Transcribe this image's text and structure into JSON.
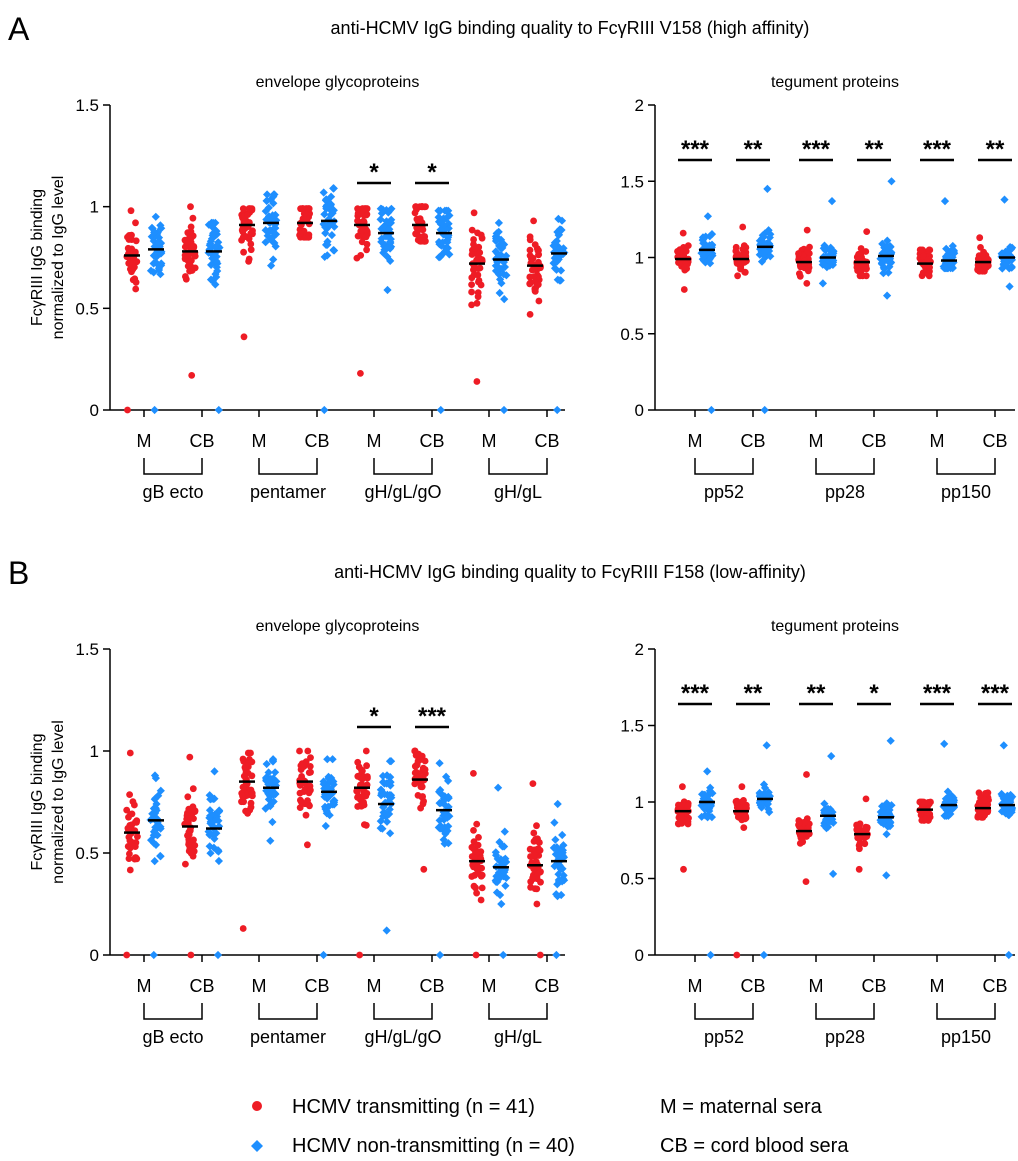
{
  "panels": [
    {
      "letter": "A",
      "title": "anti-HCMV IgG binding quality to FcγRIII V158 (high affinity)"
    },
    {
      "letter": "B",
      "title": "anti-HCMV IgG binding quality to FcγRIII F158 (low-affinity)"
    }
  ],
  "ylabel_line1": "FcγRIII IgG binding",
  "ylabel_line2": "normalized to IgG level",
  "group_titles": {
    "envelope": "envelope glycoproteins",
    "tegument": "tegument proteins"
  },
  "legend": {
    "transmitting": "HCMV transmitting (n = 41)",
    "non_transmitting": "HCMV non-transmitting (n = 40)",
    "m_def": "M = maternal sera",
    "cb_def": "CB = cord blood sera"
  },
  "colors": {
    "transmitting": "#ee1c25",
    "non_transmitting": "#1e8fff",
    "axis": "#000000"
  },
  "markers": {
    "transmitting": "circle",
    "non_transmitting": "diamond"
  },
  "chart_data": [
    {
      "type": "scatter",
      "panel": "A",
      "subplot": "envelope glycoproteins",
      "ylim": [
        0,
        1.5
      ],
      "yticks": [
        "0",
        "0.5",
        "1",
        "1.5"
      ],
      "antigens": [
        "gB ecto",
        "pentamer",
        "gH/gL/gO",
        "gH/gL"
      ],
      "sample_labels": [
        "M",
        "CB"
      ],
      "medians": {
        "transmitting": {
          "M": [
            0.76,
            0.91,
            0.91,
            0.72
          ],
          "CB": [
            0.78,
            0.92,
            0.91,
            0.71
          ]
        },
        "non_transmitting": {
          "M": [
            0.79,
            0.92,
            0.87,
            0.74
          ],
          "CB": [
            0.78,
            0.93,
            0.87,
            0.77
          ]
        }
      },
      "ranges": {
        "transmitting": {
          "M": [
            [
              0.0,
              0.98
            ],
            [
              0.36,
              0.99
            ],
            [
              0.18,
              0.99
            ],
            [
              0.14,
              0.97
            ]
          ],
          "CB": [
            [
              0.17,
              1.0
            ],
            [
              0.85,
              0.99
            ],
            [
              0.83,
              1.0
            ],
            [
              0.47,
              0.93
            ]
          ]
        },
        "non_transmitting": {
          "M": [
            [
              0.0,
              0.95
            ],
            [
              0.71,
              1.06
            ],
            [
              0.59,
              0.99
            ],
            [
              0.0,
              0.92
            ]
          ],
          "CB": [
            [
              0.0,
              0.92
            ],
            [
              0.0,
              1.09
            ],
            [
              0.0,
              0.98
            ],
            [
              0.0,
              0.94
            ]
          ]
        }
      },
      "significance": [
        {
          "antigen": "gH/gL/gO",
          "sample": "M",
          "label": "*"
        },
        {
          "antigen": "gH/gL/gO",
          "sample": "CB",
          "label": "*"
        }
      ]
    },
    {
      "type": "scatter",
      "panel": "A",
      "subplot": "tegument proteins",
      "ylim": [
        0,
        2
      ],
      "yticks": [
        "0",
        "0.5",
        "1",
        "1.5",
        "2"
      ],
      "antigens": [
        "pp52",
        "pp28",
        "pp150"
      ],
      "sample_labels": [
        "M",
        "CB"
      ],
      "medians": {
        "transmitting": {
          "M": [
            0.99,
            0.97,
            0.96
          ],
          "CB": [
            0.99,
            0.97,
            0.97
          ]
        },
        "non_transmitting": {
          "M": [
            1.05,
            1.0,
            0.98
          ],
          "CB": [
            1.07,
            1.01,
            1.0
          ]
        }
      },
      "ranges": {
        "transmitting": {
          "M": [
            [
              0.79,
              1.16
            ],
            [
              0.83,
              1.18
            ],
            [
              0.88,
              1.05
            ]
          ],
          "CB": [
            [
              0.88,
              1.2
            ],
            [
              0.88,
              1.17
            ],
            [
              0.91,
              1.13
            ]
          ]
        },
        "non_transmitting": {
          "M": [
            [
              0.0,
              1.27
            ],
            [
              0.83,
              1.37
            ],
            [
              0.93,
              1.37
            ]
          ],
          "CB": [
            [
              0.0,
              1.45
            ],
            [
              0.75,
              1.5
            ],
            [
              0.81,
              1.38
            ]
          ]
        }
      },
      "significance": [
        {
          "antigen": "pp52",
          "sample": "M",
          "label": "***"
        },
        {
          "antigen": "pp52",
          "sample": "CB",
          "label": "**"
        },
        {
          "antigen": "pp28",
          "sample": "M",
          "label": "***"
        },
        {
          "antigen": "pp28",
          "sample": "CB",
          "label": "**"
        },
        {
          "antigen": "pp150",
          "sample": "M",
          "label": "***"
        },
        {
          "antigen": "pp150",
          "sample": "CB",
          "label": "**"
        }
      ]
    },
    {
      "type": "scatter",
      "panel": "B",
      "subplot": "envelope glycoproteins",
      "ylim": [
        0,
        1.5
      ],
      "yticks": [
        "0",
        "0.5",
        "1",
        "1.5"
      ],
      "antigens": [
        "gB ecto",
        "pentamer",
        "gH/gL/gO",
        "gH/gL"
      ],
      "sample_labels": [
        "M",
        "CB"
      ],
      "medians": {
        "transmitting": {
          "M": [
            0.6,
            0.85,
            0.82,
            0.46
          ],
          "CB": [
            0.63,
            0.85,
            0.86,
            0.44
          ]
        },
        "non_transmitting": {
          "M": [
            0.66,
            0.82,
            0.74,
            0.43
          ],
          "CB": [
            0.62,
            0.8,
            0.71,
            0.46
          ]
        }
      },
      "ranges": {
        "transmitting": {
          "M": [
            [
              0.0,
              0.99
            ],
            [
              0.13,
              0.99
            ],
            [
              0.0,
              1.0
            ],
            [
              0.0,
              0.89
            ]
          ],
          "CB": [
            [
              0.0,
              0.97
            ],
            [
              0.54,
              1.0
            ],
            [
              0.42,
              1.0
            ],
            [
              0.0,
              0.84
            ]
          ]
        },
        "non_transmitting": {
          "M": [
            [
              0.0,
              0.88
            ],
            [
              0.56,
              0.96
            ],
            [
              0.12,
              0.95
            ],
            [
              0.0,
              0.82
            ]
          ],
          "CB": [
            [
              0.0,
              0.9
            ],
            [
              0.0,
              0.96
            ],
            [
              0.0,
              0.94
            ],
            [
              0.0,
              0.74
            ]
          ]
        }
      },
      "significance": [
        {
          "antigen": "gH/gL/gO",
          "sample": "M",
          "label": "*"
        },
        {
          "antigen": "gH/gL/gO",
          "sample": "CB",
          "label": "***"
        }
      ]
    },
    {
      "type": "scatter",
      "panel": "B",
      "subplot": "tegument proteins",
      "ylim": [
        0,
        2
      ],
      "yticks": [
        "0",
        "0.5",
        "1",
        "1.5",
        "2"
      ],
      "antigens": [
        "pp52",
        "pp28",
        "pp150"
      ],
      "sample_labels": [
        "M",
        "CB"
      ],
      "medians": {
        "transmitting": {
          "M": [
            0.94,
            0.81,
            0.95
          ],
          "CB": [
            0.94,
            0.79,
            0.96
          ]
        },
        "non_transmitting": {
          "M": [
            1.0,
            0.91,
            0.98
          ],
          "CB": [
            1.02,
            0.9,
            0.98
          ]
        }
      },
      "ranges": {
        "transmitting": {
          "M": [
            [
              0.56,
              1.1
            ],
            [
              0.48,
              1.18
            ],
            [
              0.88,
              1.0
            ]
          ],
          "CB": [
            [
              0.0,
              1.1
            ],
            [
              0.56,
              1.02
            ],
            [
              0.9,
              1.06
            ]
          ]
        },
        "non_transmitting": {
          "M": [
            [
              0.0,
              1.2
            ],
            [
              0.53,
              1.3
            ],
            [
              0.91,
              1.38
            ]
          ],
          "CB": [
            [
              0.0,
              1.37
            ],
            [
              0.52,
              1.4
            ],
            [
              0.0,
              1.37
            ]
          ]
        }
      },
      "significance": [
        {
          "antigen": "pp52",
          "sample": "M",
          "label": "***"
        },
        {
          "antigen": "pp52",
          "sample": "CB",
          "label": "**"
        },
        {
          "antigen": "pp28",
          "sample": "M",
          "label": "**"
        },
        {
          "antigen": "pp28",
          "sample": "CB",
          "label": "*"
        },
        {
          "antigen": "pp150",
          "sample": "M",
          "label": "***"
        },
        {
          "antigen": "pp150",
          "sample": "CB",
          "label": "***"
        }
      ]
    }
  ]
}
